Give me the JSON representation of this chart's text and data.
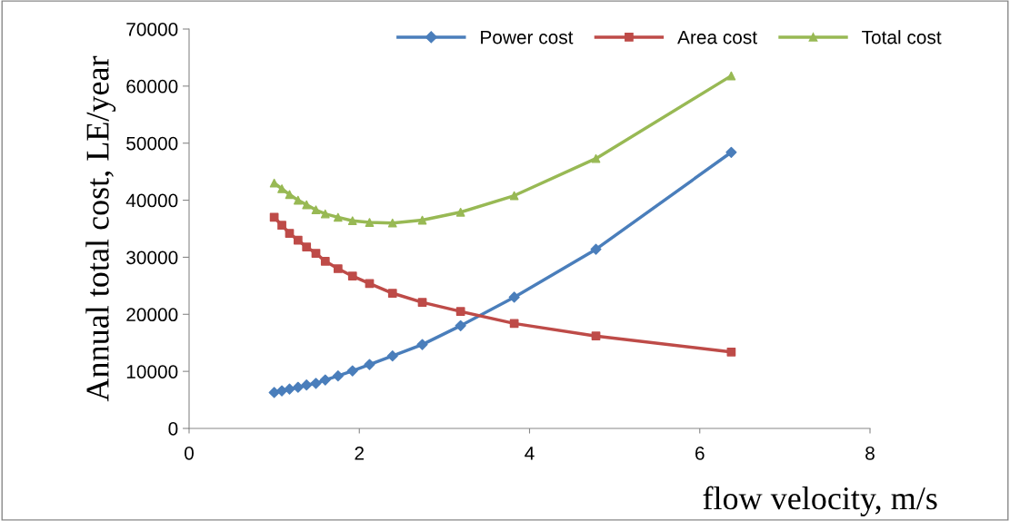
{
  "chart_data": {
    "type": "line",
    "xlabel": "flow velocity, m/s",
    "ylabel": "Annual total cost, LE/year",
    "x": [
      1.0,
      1.09,
      1.18,
      1.28,
      1.38,
      1.49,
      1.6,
      1.75,
      1.92,
      2.12,
      2.39,
      2.74,
      3.19,
      3.82,
      4.78,
      6.37
    ],
    "series": [
      {
        "name": "Power cost",
        "color": "#4a7ebb",
        "marker": "diamond",
        "values": [
          6300,
          6600,
          6900,
          7200,
          7600,
          7900,
          8500,
          9200,
          10100,
          11200,
          12700,
          14700,
          18000,
          23000,
          31400,
          48400
        ]
      },
      {
        "name": "Area cost",
        "color": "#be4b48",
        "marker": "square",
        "values": [
          37000,
          35600,
          34200,
          33000,
          31800,
          30700,
          29300,
          28000,
          26700,
          25400,
          23700,
          22100,
          20500,
          18400,
          16200,
          13400
        ]
      },
      {
        "name": "Total cost",
        "color": "#98b954",
        "marker": "triangle",
        "values": [
          43000,
          42000,
          41000,
          40000,
          39200,
          38300,
          37600,
          37000,
          36400,
          36100,
          36000,
          36500,
          37900,
          40800,
          47300,
          61800
        ]
      }
    ],
    "xlim": [
      0,
      8
    ],
    "xticks": [
      0,
      2,
      4,
      6,
      8
    ],
    "ylim": [
      0,
      70000
    ],
    "yticks": [
      0,
      10000,
      20000,
      30000,
      40000,
      50000,
      60000,
      70000
    ],
    "grid": false,
    "legend": "top right",
    "line_style": "solid"
  }
}
